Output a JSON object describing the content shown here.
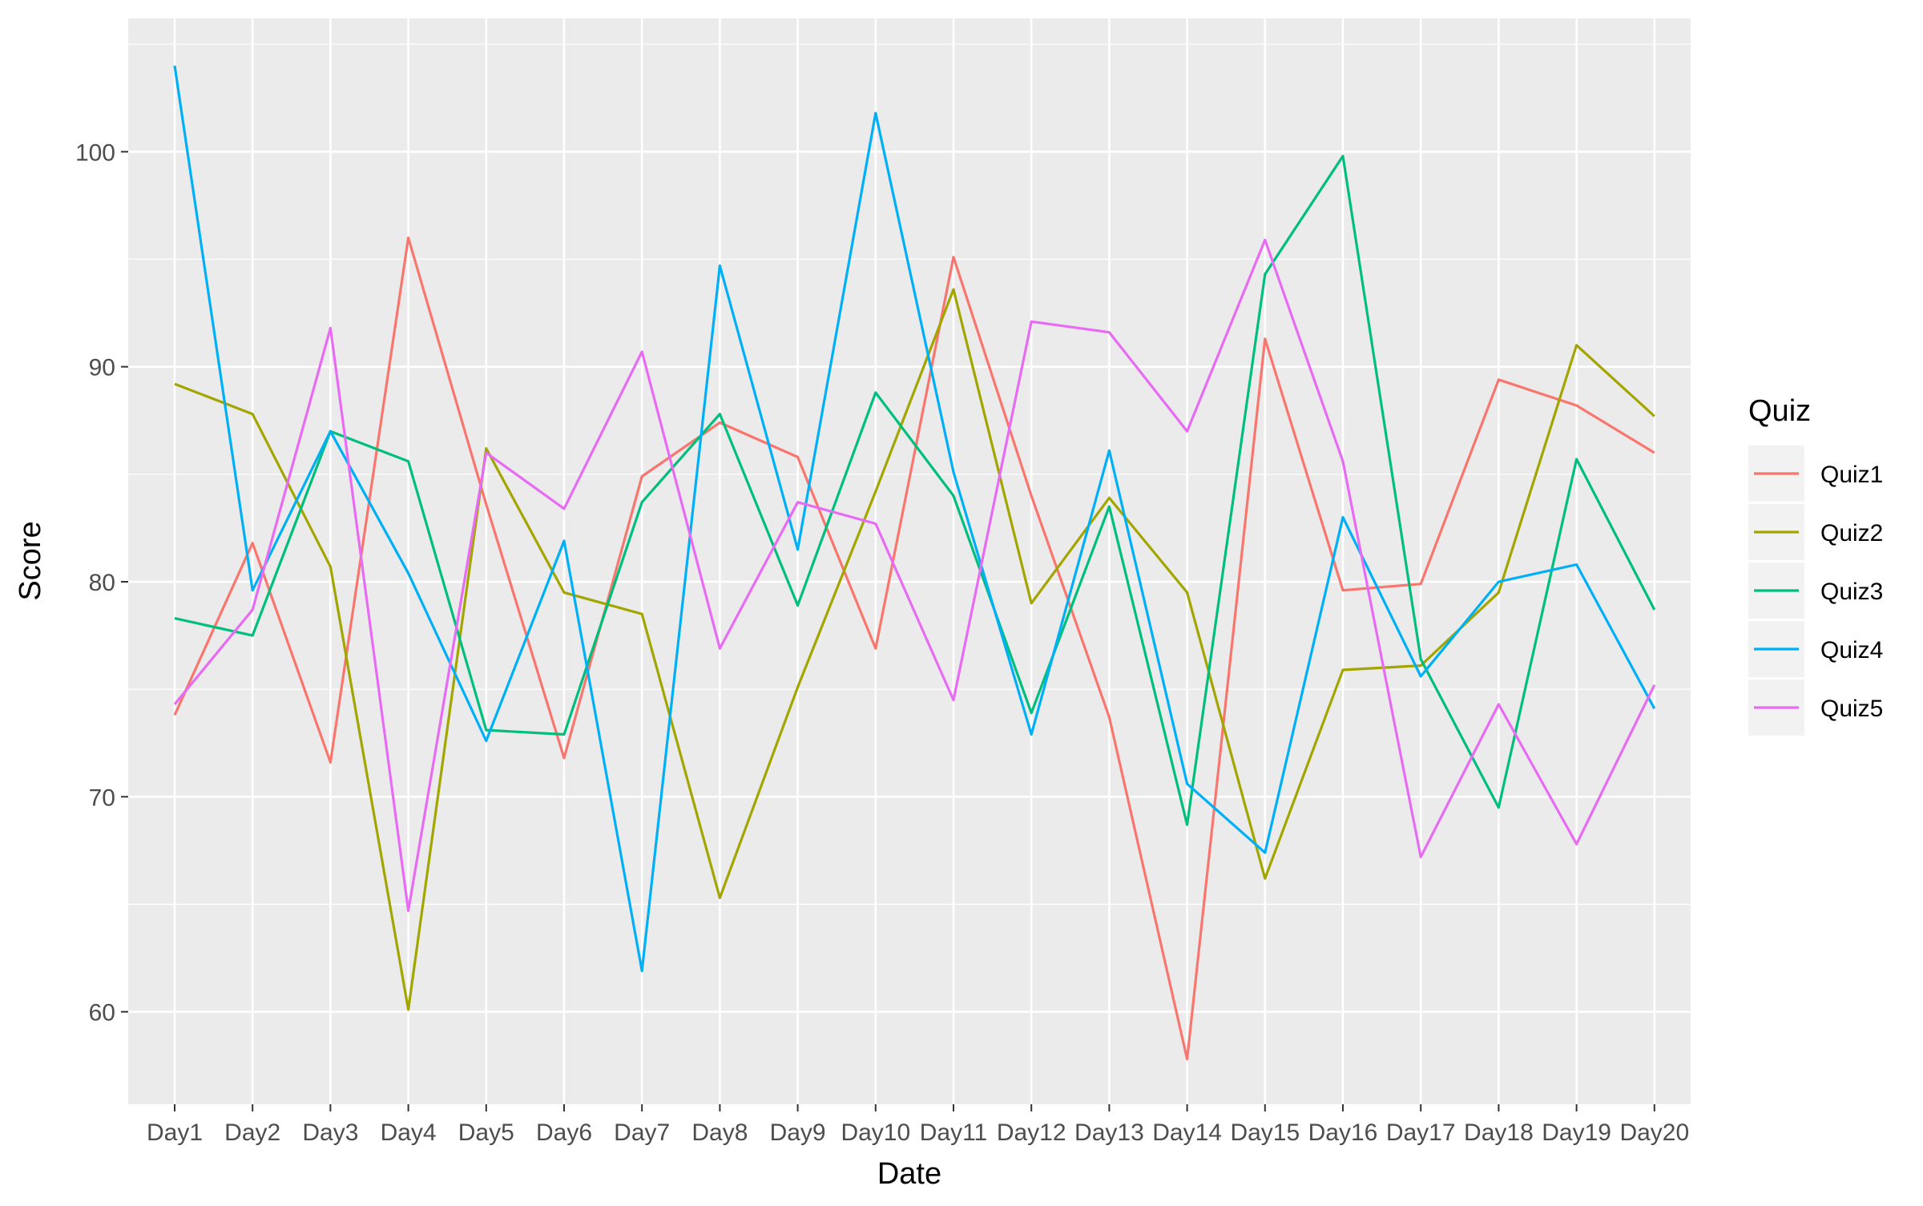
{
  "chart_data": {
    "type": "line",
    "xlabel": "Date",
    "ylabel": "Score",
    "categories": [
      "Day1",
      "Day2",
      "Day3",
      "Day4",
      "Day5",
      "Day6",
      "Day7",
      "Day8",
      "Day9",
      "Day10",
      "Day11",
      "Day12",
      "Day13",
      "Day14",
      "Day15",
      "Day16",
      "Day17",
      "Day18",
      "Day19",
      "Day20"
    ],
    "ylim": [
      55.7,
      106.2
    ],
    "yticks": [
      60,
      70,
      80,
      90,
      100
    ],
    "grid": true,
    "legend": {
      "title": "Quiz",
      "position": "right"
    },
    "series": [
      {
        "name": "Quiz1",
        "color": "#F8766D",
        "values": [
          73.8,
          81.8,
          71.6,
          96.0,
          83.6,
          71.8,
          84.9,
          87.4,
          85.8,
          76.9,
          95.1,
          84.0,
          73.7,
          57.8,
          91.3,
          79.6,
          79.9,
          89.4,
          88.2,
          86.0
        ]
      },
      {
        "name": "Quiz2",
        "color": "#A3A500",
        "values": [
          89.2,
          87.8,
          80.7,
          60.1,
          86.2,
          79.5,
          78.5,
          65.3,
          75.1,
          84.2,
          93.6,
          79.0,
          83.9,
          79.5,
          66.2,
          75.9,
          76.1,
          79.5,
          91.0,
          87.7
        ]
      },
      {
        "name": "Quiz3",
        "color": "#00BF7D",
        "values": [
          78.3,
          77.5,
          87.0,
          85.6,
          73.1,
          72.9,
          83.7,
          87.8,
          78.9,
          88.8,
          84.0,
          73.9,
          83.5,
          68.7,
          94.3,
          99.8,
          76.4,
          69.5,
          85.7,
          78.7
        ]
      },
      {
        "name": "Quiz4",
        "color": "#00B0F6",
        "values": [
          104.0,
          79.6,
          87.0,
          80.4,
          72.6,
          81.9,
          61.9,
          94.7,
          81.5,
          101.8,
          85.1,
          72.9,
          86.1,
          70.6,
          67.4,
          83.0,
          75.6,
          80.0,
          80.8,
          74.1
        ]
      },
      {
        "name": "Quiz5",
        "color": "#E76BF3",
        "values": [
          74.3,
          78.7,
          91.8,
          64.7,
          86.0,
          83.4,
          90.7,
          76.9,
          83.7,
          82.7,
          74.5,
          92.1,
          91.6,
          87.0,
          95.9,
          85.6,
          67.2,
          74.3,
          67.8,
          75.2
        ]
      }
    ]
  }
}
